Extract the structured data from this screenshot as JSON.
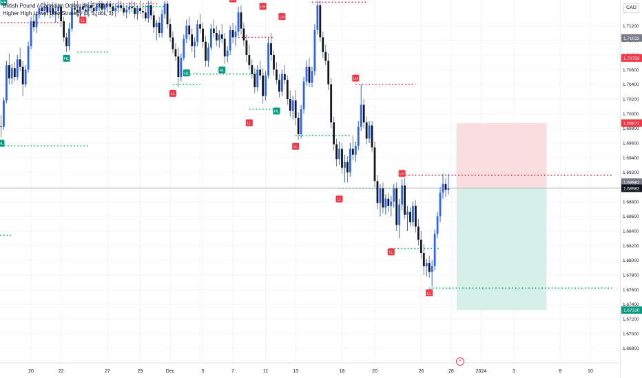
{
  "header": {
    "symbol_title": "British Pound / Canadian Dollar, 4h, FXCM",
    "indicator_title": "Higher High Lower Low Strategy (3, 5, dot, 3)"
  },
  "currency_badge": "CAD",
  "event_icon": "lightning-bolt-icon",
  "colors": {
    "bull": "#2962ff",
    "bear": "#131722",
    "wick": "#787b86",
    "hh_hl_label": "#089981",
    "lh_ll_label": "#f23645",
    "support_dots": "#00c853",
    "resistance_dots": "#f23645",
    "stop_zone": "#f8d7d9",
    "target_zone": "#d2ede6"
  },
  "chart_data": {
    "type": "candlestick",
    "title": "British Pound / Canadian Dollar, 4h, FXCM",
    "y_unit": "CAD",
    "ylim": [
      1.666,
      1.7155
    ],
    "y_ticks": [
      "1.71200",
      "1.71000",
      "1.70800",
      "1.70600",
      "1.70400",
      "1.70200",
      "1.70000",
      "1.69800",
      "1.69600",
      "1.69400",
      "1.69200",
      "1.69000",
      "1.68800",
      "1.68600",
      "1.68400",
      "1.68200",
      "1.68000",
      "1.67800",
      "1.67600",
      "1.67400",
      "1.67200",
      "1.67000",
      "1.66800"
    ],
    "x_ticks": [
      {
        "label": "20",
        "bar": 11
      },
      {
        "label": "22",
        "bar": 22
      },
      {
        "label": "27",
        "bar": 39
      },
      {
        "label": "29",
        "bar": 51
      },
      {
        "label": "Dec",
        "bar": 62
      },
      {
        "label": "5",
        "bar": 74
      },
      {
        "label": "7",
        "bar": 85
      },
      {
        "label": "11",
        "bar": 97
      },
      {
        "label": "13",
        "bar": 108
      },
      {
        "label": "18",
        "bar": 125
      },
      {
        "label": "20",
        "bar": 137
      },
      {
        "label": "26",
        "bar": 154
      },
      {
        "label": "28",
        "bar": 165
      },
      {
        "label": "2024",
        "bar": 176
      },
      {
        "label": "3",
        "bar": 188
      },
      {
        "label": "8",
        "bar": 205
      },
      {
        "label": "10",
        "bar": 216
      }
    ],
    "price_badges": [
      {
        "value": "1.71032",
        "style": "grey"
      },
      {
        "value": "1.70759",
        "style": "red"
      },
      {
        "value": "1.69871",
        "style": "red"
      },
      {
        "value": "1.68982",
        "style": "grey"
      },
      {
        "value": "1.68982",
        "style": "dark"
      },
      {
        "value": "1.67320",
        "style": "green"
      }
    ],
    "current_price": 1.68982,
    "candles": [
      [
        1.6983,
        1.6998,
        1.6968,
        1.6982
      ],
      [
        1.6982,
        1.7022,
        1.6978,
        1.7018
      ],
      [
        1.7018,
        1.7072,
        1.7014,
        1.7066
      ],
      [
        1.7066,
        1.7082,
        1.704,
        1.7048
      ],
      [
        1.7048,
        1.7068,
        1.704,
        1.7062
      ],
      [
        1.7062,
        1.707,
        1.7044,
        1.705
      ],
      [
        1.705,
        1.708,
        1.7046,
        1.7074
      ],
      [
        1.7074,
        1.709,
        1.7058,
        1.7064
      ],
      [
        1.7064,
        1.7072,
        1.7024,
        1.704
      ],
      [
        1.704,
        1.7066,
        1.7036,
        1.706
      ],
      [
        1.706,
        1.7098,
        1.7056,
        1.7092
      ],
      [
        1.7092,
        1.7132,
        1.7088,
        1.7126
      ],
      [
        1.7126,
        1.7136,
        1.7112,
        1.7118
      ],
      [
        1.7118,
        1.714,
        1.711,
        1.7136
      ],
      [
        1.7136,
        1.7148,
        1.713,
        1.7144
      ],
      [
        1.7144,
        1.715,
        1.7136,
        1.714
      ],
      [
        1.714,
        1.7152,
        1.7132,
        1.7146
      ],
      [
        1.7146,
        1.7152,
        1.7134,
        1.7138
      ],
      [
        1.7138,
        1.715,
        1.713,
        1.7144
      ],
      [
        1.7144,
        1.7152,
        1.7132,
        1.7136
      ],
      [
        1.7136,
        1.7148,
        1.7124,
        1.714
      ],
      [
        1.714,
        1.715,
        1.713,
        1.7146
      ],
      [
        1.7146,
        1.715,
        1.7118,
        1.7126
      ],
      [
        1.7126,
        1.7132,
        1.7098,
        1.7104
      ],
      [
        1.7104,
        1.711,
        1.7084,
        1.7092
      ],
      [
        1.7092,
        1.7124,
        1.7086,
        1.7116
      ],
      [
        1.7116,
        1.715,
        1.7112,
        1.7144
      ],
      [
        1.7144,
        1.7154,
        1.7136,
        1.7142
      ],
      [
        1.7142,
        1.7154,
        1.7132,
        1.7138
      ],
      [
        1.7138,
        1.715,
        1.713,
        1.7146
      ],
      [
        1.7146,
        1.7152,
        1.7138,
        1.7142
      ],
      [
        1.7142,
        1.715,
        1.7134,
        1.714
      ],
      [
        1.714,
        1.7152,
        1.7132,
        1.7148
      ],
      [
        1.7148,
        1.7154,
        1.7138,
        1.7144
      ],
      [
        1.7144,
        1.7152,
        1.7134,
        1.714
      ],
      [
        1.714,
        1.715,
        1.7132,
        1.7146
      ],
      [
        1.7146,
        1.7154,
        1.714,
        1.715
      ],
      [
        1.715,
        1.7154,
        1.7138,
        1.7142
      ],
      [
        1.7142,
        1.715,
        1.7134,
        1.7146
      ],
      [
        1.7146,
        1.7154,
        1.7138,
        1.715
      ],
      [
        1.715,
        1.7154,
        1.7142,
        1.7146
      ],
      [
        1.7146,
        1.715,
        1.7136,
        1.714
      ],
      [
        1.714,
        1.715,
        1.7132,
        1.7144
      ],
      [
        1.7144,
        1.7154,
        1.7138,
        1.7148
      ],
      [
        1.7148,
        1.7154,
        1.714,
        1.7144
      ],
      [
        1.7144,
        1.715,
        1.7134,
        1.7138
      ],
      [
        1.7138,
        1.7148,
        1.713,
        1.7142
      ],
      [
        1.7142,
        1.7152,
        1.7136,
        1.7146
      ],
      [
        1.7146,
        1.7154,
        1.7138,
        1.7144
      ],
      [
        1.7144,
        1.7152,
        1.713,
        1.7136
      ],
      [
        1.7136,
        1.7148,
        1.7128,
        1.7144
      ],
      [
        1.7144,
        1.7154,
        1.7136,
        1.714
      ],
      [
        1.714,
        1.715,
        1.713,
        1.7138
      ],
      [
        1.7138,
        1.7148,
        1.7126,
        1.713
      ],
      [
        1.713,
        1.7154,
        1.7124,
        1.7148
      ],
      [
        1.7148,
        1.7154,
        1.7128,
        1.7134
      ],
      [
        1.7134,
        1.714,
        1.711,
        1.7118
      ],
      [
        1.7118,
        1.7128,
        1.71,
        1.7124
      ],
      [
        1.7124,
        1.7132,
        1.7104,
        1.711
      ],
      [
        1.711,
        1.7142,
        1.7104,
        1.7136
      ],
      [
        1.7136,
        1.7154,
        1.713,
        1.715
      ],
      [
        1.715,
        1.7154,
        1.7116,
        1.7122
      ],
      [
        1.7122,
        1.713,
        1.7098,
        1.7104
      ],
      [
        1.7104,
        1.7112,
        1.7082,
        1.7088
      ],
      [
        1.7088,
        1.7096,
        1.7072,
        1.7078
      ],
      [
        1.7078,
        1.709,
        1.7036,
        1.705
      ],
      [
        1.705,
        1.7082,
        1.7044,
        1.7076
      ],
      [
        1.7076,
        1.7108,
        1.7072,
        1.7102
      ],
      [
        1.7102,
        1.7128,
        1.7096,
        1.712
      ],
      [
        1.712,
        1.7132,
        1.71,
        1.7108
      ],
      [
        1.7108,
        1.7116,
        1.7084,
        1.7092
      ],
      [
        1.7092,
        1.7104,
        1.7076,
        1.7098
      ],
      [
        1.7098,
        1.7128,
        1.7092,
        1.7122
      ],
      [
        1.7122,
        1.7136,
        1.711,
        1.7116
      ],
      [
        1.7116,
        1.7124,
        1.709,
        1.7098
      ],
      [
        1.7098,
        1.7106,
        1.7064,
        1.7072
      ],
      [
        1.7072,
        1.7096,
        1.7064,
        1.709
      ],
      [
        1.709,
        1.7122,
        1.7086,
        1.7116
      ],
      [
        1.7116,
        1.7128,
        1.7104,
        1.711
      ],
      [
        1.711,
        1.712,
        1.7092,
        1.71
      ],
      [
        1.71,
        1.7114,
        1.709,
        1.7108
      ],
      [
        1.7108,
        1.7122,
        1.7096,
        1.7102
      ],
      [
        1.7102,
        1.711,
        1.7068,
        1.7078
      ],
      [
        1.7078,
        1.7092,
        1.707,
        1.7086
      ],
      [
        1.7086,
        1.712,
        1.708,
        1.7114
      ],
      [
        1.7114,
        1.7124,
        1.7096,
        1.7104
      ],
      [
        1.7104,
        1.712,
        1.7092,
        1.7112
      ],
      [
        1.7112,
        1.7146,
        1.7106,
        1.7138
      ],
      [
        1.7138,
        1.7148,
        1.7108,
        1.7116
      ],
      [
        1.7116,
        1.7124,
        1.7092,
        1.71
      ],
      [
        1.71,
        1.7108,
        1.707,
        1.708
      ],
      [
        1.708,
        1.7094,
        1.706,
        1.7066
      ],
      [
        1.7066,
        1.7074,
        1.7048,
        1.7054
      ],
      [
        1.7054,
        1.7062,
        1.7028,
        1.7036
      ],
      [
        1.7036,
        1.7066,
        1.703,
        1.706
      ],
      [
        1.706,
        1.7072,
        1.7046,
        1.7052
      ],
      [
        1.7052,
        1.7062,
        1.7014,
        1.7024
      ],
      [
        1.7024,
        1.7058,
        1.7018,
        1.7052
      ],
      [
        1.7052,
        1.7104,
        1.7048,
        1.7096
      ],
      [
        1.7096,
        1.711,
        1.7072,
        1.708
      ],
      [
        1.708,
        1.7086,
        1.7052,
        1.706
      ],
      [
        1.706,
        1.707,
        1.704,
        1.7046
      ],
      [
        1.7046,
        1.7054,
        1.7022,
        1.703
      ],
      [
        1.703,
        1.706,
        1.7024,
        1.7054
      ],
      [
        1.7054,
        1.7066,
        1.704,
        1.7046
      ],
      [
        1.7046,
        1.7052,
        1.7012,
        1.702
      ],
      [
        1.702,
        1.7032,
        1.6996,
        1.7004
      ],
      [
        1.7004,
        1.7024,
        1.6992,
        1.7018
      ],
      [
        1.7018,
        1.7032,
        1.6984,
        1.6994
      ],
      [
        1.6994,
        1.7002,
        1.6964,
        1.6972
      ],
      [
        1.6972,
        1.7012,
        1.6966,
        1.7006
      ],
      [
        1.7006,
        1.705,
        1.7,
        1.7044
      ],
      [
        1.7044,
        1.7072,
        1.7038,
        1.7064
      ],
      [
        1.7064,
        1.7076,
        1.7036,
        1.7042
      ],
      [
        1.7042,
        1.7064,
        1.7036,
        1.7058
      ],
      [
        1.7058,
        1.7122,
        1.7052,
        1.7114
      ],
      [
        1.7114,
        1.7154,
        1.7108,
        1.7148
      ],
      [
        1.7148,
        1.7154,
        1.7098,
        1.7104
      ],
      [
        1.7104,
        1.7112,
        1.7076,
        1.7084
      ],
      [
        1.7084,
        1.7094,
        1.7066,
        1.7072
      ],
      [
        1.7072,
        1.7082,
        1.7032,
        1.704
      ],
      [
        1.704,
        1.7048,
        1.698,
        1.6988
      ],
      [
        1.6988,
        1.6996,
        1.695,
        1.6958
      ],
      [
        1.6958,
        1.6966,
        1.6928,
        1.6938
      ],
      [
        1.6938,
        1.6962,
        1.693,
        1.6952
      ],
      [
        1.6952,
        1.696,
        1.6918,
        1.6926
      ],
      [
        1.6926,
        1.6944,
        1.6906,
        1.6934
      ],
      [
        1.6934,
        1.6942,
        1.6906,
        1.692
      ],
      [
        1.692,
        1.696,
        1.6914,
        1.6952
      ],
      [
        1.6952,
        1.697,
        1.6936,
        1.6944
      ],
      [
        1.6944,
        1.6962,
        1.6934,
        1.6956
      ],
      [
        1.6956,
        1.699,
        1.695,
        1.6982
      ],
      [
        1.6982,
        1.704,
        1.6976,
        1.7012
      ],
      [
        1.7012,
        1.702,
        1.698,
        1.6988
      ],
      [
        1.6988,
        1.6996,
        1.6958,
        1.6966
      ],
      [
        1.6966,
        1.699,
        1.696,
        1.6984
      ],
      [
        1.6984,
        1.699,
        1.6948,
        1.6954
      ],
      [
        1.6954,
        1.6962,
        1.69,
        1.6908
      ],
      [
        1.6908,
        1.6916,
        1.687,
        1.6878
      ],
      [
        1.6878,
        1.6904,
        1.686,
        1.6898
      ],
      [
        1.6898,
        1.6906,
        1.6864,
        1.6872
      ],
      [
        1.6872,
        1.689,
        1.6862,
        1.6884
      ],
      [
        1.6884,
        1.6892,
        1.6866,
        1.6874
      ],
      [
        1.6874,
        1.6888,
        1.686,
        1.688
      ],
      [
        1.688,
        1.6904,
        1.6872,
        1.6898
      ],
      [
        1.6898,
        1.6906,
        1.684,
        1.6848
      ],
      [
        1.6848,
        1.6884,
        1.683,
        1.6876
      ],
      [
        1.6876,
        1.691,
        1.6868,
        1.6902
      ],
      [
        1.6902,
        1.6912,
        1.6856,
        1.6862
      ],
      [
        1.6862,
        1.6874,
        1.684,
        1.6866
      ],
      [
        1.6866,
        1.6872,
        1.6846,
        1.6852
      ],
      [
        1.6852,
        1.688,
        1.6846,
        1.6874
      ],
      [
        1.6874,
        1.6882,
        1.6838,
        1.6846
      ],
      [
        1.6846,
        1.6856,
        1.682,
        1.6828
      ],
      [
        1.6828,
        1.684,
        1.6802,
        1.681
      ],
      [
        1.681,
        1.6822,
        1.678,
        1.6792
      ],
      [
        1.6792,
        1.6802,
        1.6778,
        1.6796
      ],
      [
        1.6796,
        1.6806,
        1.6776,
        1.6784
      ],
      [
        1.6784,
        1.68,
        1.6764,
        1.6792
      ],
      [
        1.6792,
        1.6842,
        1.6786,
        1.6836
      ],
      [
        1.6836,
        1.6866,
        1.683,
        1.686
      ],
      [
        1.686,
        1.69,
        1.6852,
        1.6892
      ],
      [
        1.6892,
        1.6918,
        1.6884,
        1.6904
      ],
      [
        1.6904,
        1.6912,
        1.6886,
        1.6896
      ],
      [
        1.6896,
        1.6918,
        1.689,
        1.6898
      ]
    ],
    "candle_start_bar": 0,
    "swing_labels": [
      {
        "text": "HH",
        "type": "high",
        "bar": 1,
        "price": 1.7144
      },
      {
        "text": "LL",
        "type": "low",
        "bar": 30,
        "price": 1.7136
      },
      {
        "text": "HL",
        "type": "low",
        "bar": 24,
        "price": 1.7084
      },
      {
        "text": "HL",
        "type": "low",
        "bar": 0,
        "price": 1.6968
      },
      {
        "text": "LH",
        "type": "high",
        "bar": 85,
        "price": 1.7148
      },
      {
        "text": "LH",
        "type": "high",
        "bar": 96,
        "price": 1.7138
      },
      {
        "text": "LH",
        "type": "high",
        "bar": 103,
        "price": 1.7124
      },
      {
        "text": "LL",
        "type": "low",
        "bar": 63,
        "price": 1.7036
      },
      {
        "text": "HL",
        "type": "low",
        "bar": 68,
        "price": 1.7064
      },
      {
        "text": "HL",
        "type": "low",
        "bar": 81,
        "price": 1.7068
      },
      {
        "text": "HL",
        "type": "low",
        "bar": 101,
        "price": 1.7012
      },
      {
        "text": "LL",
        "type": "low",
        "bar": 91,
        "price": 1.6996
      },
      {
        "text": "LL",
        "type": "low",
        "bar": 108,
        "price": 1.6964
      },
      {
        "text": "LH",
        "type": "high",
        "bar": 130,
        "price": 1.704
      },
      {
        "text": "LH",
        "type": "high",
        "bar": 147,
        "price": 1.691
      },
      {
        "text": "LL",
        "type": "low",
        "bar": 124,
        "price": 1.6892
      },
      {
        "text": "LL",
        "type": "low",
        "bar": 143,
        "price": 1.682
      },
      {
        "text": "LL",
        "type": "low",
        "bar": 157,
        "price": 1.6764
      }
    ],
    "level_lines": [
      {
        "type": "resistance",
        "price": 1.715,
        "from_bar": 35,
        "to_bar": 58
      },
      {
        "type": "resistance",
        "price": 1.7124,
        "from_bar": 0,
        "to_bar": 23
      },
      {
        "type": "resistance",
        "price": 1.7152,
        "from_bar": 114,
        "to_bar": 134
      },
      {
        "type": "resistance",
        "price": 1.7104,
        "from_bar": 87,
        "to_bar": 100
      },
      {
        "type": "resistance",
        "price": 1.704,
        "from_bar": 130,
        "to_bar": 152
      },
      {
        "type": "resistance",
        "price": 1.6916,
        "from_bar": 147,
        "to_bar": 224
      },
      {
        "type": "support",
        "price": 1.7146,
        "from_bar": 35,
        "to_bar": 60
      },
      {
        "type": "support",
        "price": 1.7084,
        "from_bar": 28,
        "to_bar": 40
      },
      {
        "type": "support",
        "price": 1.6956,
        "from_bar": 0,
        "to_bar": 32
      },
      {
        "type": "support",
        "price": 1.7054,
        "from_bar": 68,
        "to_bar": 97
      },
      {
        "type": "support",
        "price": 1.7054,
        "from_bar": 68,
        "to_bar": 73
      },
      {
        "type": "support",
        "price": 1.704,
        "from_bar": 63,
        "to_bar": 73
      },
      {
        "type": "support",
        "price": 1.7006,
        "from_bar": 91,
        "to_bar": 103
      },
      {
        "type": "support",
        "price": 1.697,
        "from_bar": 108,
        "to_bar": 128
      },
      {
        "type": "support",
        "price": 1.6898,
        "from_bar": 124,
        "to_bar": 147
      },
      {
        "type": "support",
        "price": 1.6834,
        "from_bar": -10,
        "to_bar": 4
      },
      {
        "type": "support",
        "price": 1.6816,
        "from_bar": 143,
        "to_bar": 161
      },
      {
        "type": "support",
        "price": 1.6762,
        "from_bar": 157,
        "to_bar": 224
      }
    ],
    "position_tool": {
      "entry": 1.68982,
      "stop": 1.69871,
      "target": 1.6732,
      "from_bar": 167,
      "to_bar": 200
    }
  }
}
